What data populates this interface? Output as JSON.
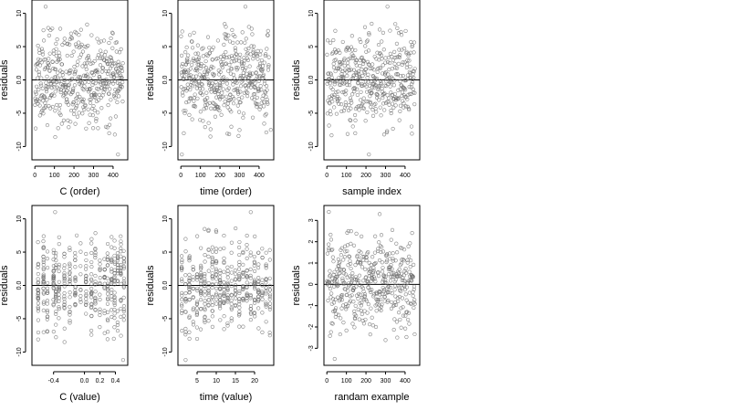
{
  "chart_data": [
    {
      "type": "scatter",
      "xlabel": "C (order)",
      "ylabel": "residuals",
      "xlim": [
        -15,
        475
      ],
      "ylim": [
        -12,
        12
      ],
      "xticks": [
        0,
        100,
        200,
        300,
        400
      ],
      "yticks": [
        -10,
        -5,
        0,
        5,
        10
      ],
      "yticklabels": [
        "-10",
        "-5",
        "0.0",
        "5",
        "10"
      ],
      "reference_line_y": 0,
      "points": {
        "n": 450,
        "x_from": 1,
        "x_to": 450,
        "sd": 3.3,
        "seed": 11,
        "special": [
          [
            55,
            11.0
          ],
          [
            68,
            7.8
          ],
          [
            425,
            -11.2
          ],
          [
            380,
            -8.0
          ]
        ]
      }
    },
    {
      "type": "scatter",
      "xlabel": "time (order)",
      "ylabel": "residuals",
      "xlim": [
        -15,
        475
      ],
      "ylim": [
        -12,
        12
      ],
      "xticks": [
        0,
        100,
        200,
        300,
        400
      ],
      "yticks": [
        -10,
        -5,
        0,
        5,
        10
      ],
      "yticklabels": [
        "-10",
        "-5",
        "0.0",
        "5",
        "10"
      ],
      "reference_line_y": 0,
      "points": {
        "n": 450,
        "x_from": 1,
        "x_to": 450,
        "sd": 3.3,
        "seed": 23,
        "special": [
          [
            330,
            11.0
          ],
          [
            5,
            -11.2
          ],
          [
            15,
            -8.0
          ],
          [
            460,
            -7.5
          ]
        ]
      }
    },
    {
      "type": "scatter",
      "xlabel": "sample index",
      "ylabel": "residuals",
      "xlim": [
        -15,
        475
      ],
      "ylim": [
        -12,
        12
      ],
      "xticks": [
        0,
        100,
        200,
        300,
        400
      ],
      "yticks": [
        -10,
        -5,
        0,
        5,
        10
      ],
      "yticklabels": [
        "-10",
        "-5",
        "0.0",
        "5",
        "10"
      ],
      "reference_line_y": 0,
      "points": {
        "n": 450,
        "x_from": 1,
        "x_to": 450,
        "sd": 3.3,
        "seed": 37,
        "special": [
          [
            310,
            11.0
          ],
          [
            215,
            -11.2
          ],
          [
            145,
            -8.0
          ]
        ]
      }
    },
    {
      "type": "scatter",
      "xlabel": "C (value)",
      "ylabel": "residuals",
      "xlim": [
        -0.68,
        0.56
      ],
      "ylim": [
        -12,
        12
      ],
      "xticks": [
        -0.4,
        0.0,
        0.2,
        0.4
      ],
      "xticklabels": [
        "-0.4",
        "0.0",
        "0.2",
        "0.4"
      ],
      "yticks": [
        -10,
        -5,
        0,
        5,
        10
      ],
      "yticklabels": [
        "-10",
        "-5",
        "0.0",
        "5",
        "10"
      ],
      "reference_line_y": 0,
      "columns_x": [
        -0.6,
        -0.53,
        -0.48,
        -0.4,
        -0.37,
        -0.33,
        -0.26,
        -0.19,
        -0.12,
        -0.05,
        0.02,
        0.09,
        0.14,
        0.2,
        0.26,
        0.3,
        0.35,
        0.39,
        0.43,
        0.47,
        0.51
      ],
      "points": {
        "n": 420,
        "sd": 3.2,
        "seed": 53,
        "special": [
          [
            -0.38,
            11.0
          ],
          [
            0.5,
            -11.2
          ],
          [
            0.38,
            -8.0
          ],
          [
            -0.1,
            7.5
          ]
        ]
      }
    },
    {
      "type": "scatter",
      "xlabel": "time (value)",
      "ylabel": "residuals",
      "xlim": [
        0,
        25
      ],
      "ylim": [
        -12,
        12
      ],
      "xticks": [
        5,
        10,
        15,
        20
      ],
      "yticks": [
        -10,
        -5,
        0,
        5,
        10
      ],
      "yticklabels": [
        "-10",
        "-5",
        "0.0",
        "5",
        "10"
      ],
      "reference_line_y": 0,
      "columns_x": [
        1,
        2,
        3,
        4,
        5,
        6,
        7,
        8,
        9,
        10,
        11,
        12,
        13,
        14,
        15,
        16,
        17,
        18,
        19,
        20,
        21,
        22,
        23,
        24
      ],
      "points": {
        "n": 430,
        "sd": 3.3,
        "seed": 71,
        "special": [
          [
            19,
            11.0
          ],
          [
            2,
            -11.2
          ],
          [
            24,
            -7.5
          ],
          [
            3,
            -8.0
          ]
        ]
      }
    },
    {
      "type": "scatter",
      "xlabel": "randam example",
      "ylabel": "residuals",
      "xlim": [
        -15,
        475
      ],
      "ylim": [
        -3.8,
        3.7
      ],
      "xticks": [
        0,
        100,
        200,
        300,
        400
      ],
      "yticks": [
        -3,
        -2,
        -1,
        0,
        1,
        2,
        3
      ],
      "reference_line_y": 0,
      "points": {
        "n": 450,
        "x_from": 1,
        "x_to": 450,
        "sd": 1.0,
        "seed": 89,
        "special": [
          [
            10,
            3.4
          ],
          [
            270,
            3.3
          ],
          [
            40,
            -3.5
          ]
        ]
      }
    }
  ]
}
